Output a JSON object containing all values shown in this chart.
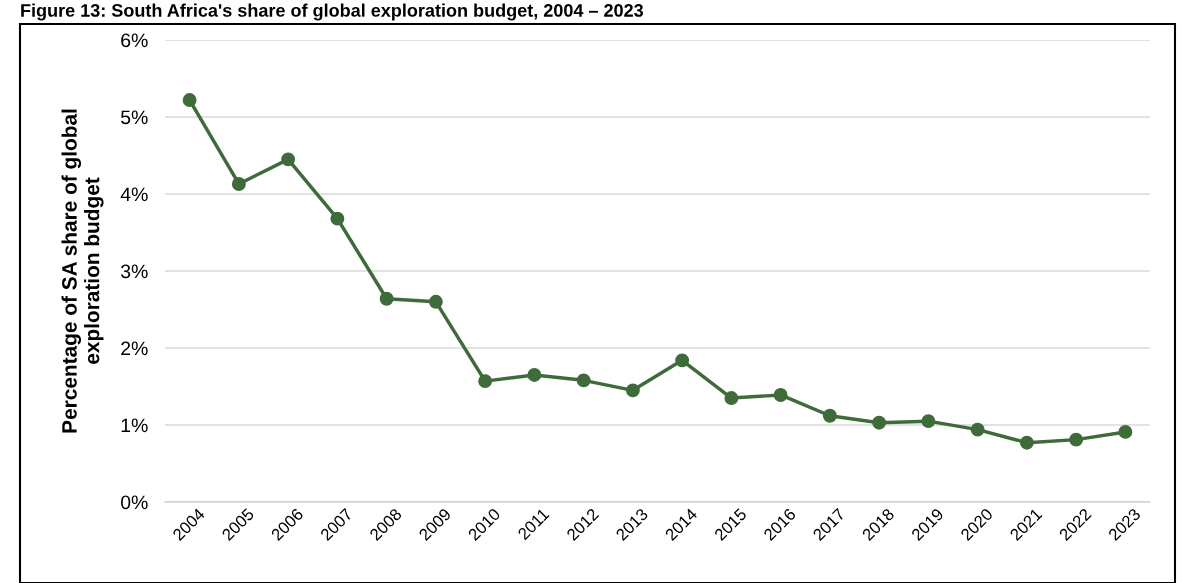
{
  "chart_data": {
    "type": "line",
    "title": "Figure 13: South Africa's share of global exploration budget, 2004 – 2023",
    "ylabel": "Percentage of SA share of global\nexploration budget",
    "categories": [
      "2004",
      "2005",
      "2006",
      "2007",
      "2008",
      "2009",
      "2010",
      "2011",
      "2012",
      "2013",
      "2014",
      "2015",
      "2016",
      "2017",
      "2018",
      "2019",
      "2020",
      "2021",
      "2022",
      "2023"
    ],
    "series": [
      {
        "color": "#3f6b3a",
        "values": [
          5.22,
          4.13,
          4.45,
          3.68,
          2.64,
          2.6,
          1.57,
          1.65,
          1.58,
          1.45,
          1.84,
          1.35,
          1.39,
          1.12,
          1.03,
          1.05,
          0.94,
          0.77,
          0.81,
          0.91
        ]
      }
    ],
    "ylim": [
      0,
      6
    ],
    "yticks": [
      {
        "value": 0,
        "label": "0%"
      },
      {
        "value": 1,
        "label": "1%"
      },
      {
        "value": 2,
        "label": "2%"
      },
      {
        "value": 3,
        "label": "3%"
      },
      {
        "value": 4,
        "label": "4%"
      },
      {
        "value": 5,
        "label": "5%"
      },
      {
        "value": 6,
        "label": "6%"
      }
    ],
    "grid": "y",
    "marker": "circle",
    "line_style": "solid",
    "legend": false
  }
}
